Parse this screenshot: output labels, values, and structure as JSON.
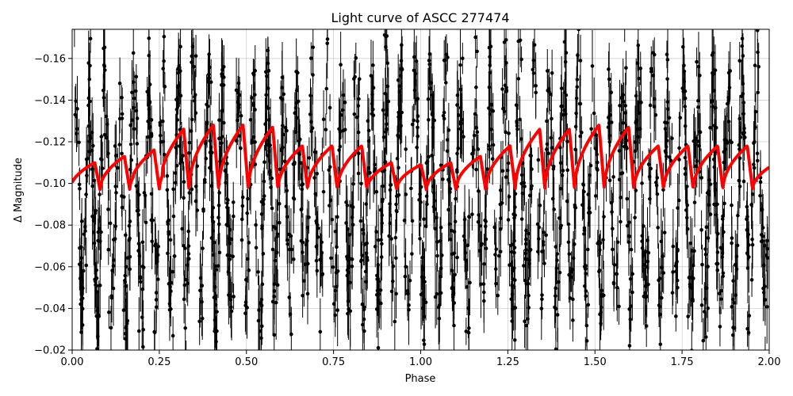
{
  "chart_data": {
    "type": "scatter",
    "title": "Light curve of ASCC 277474",
    "xlabel": "Phase",
    "ylabel": "Δ Magnitude",
    "xlim": [
      0.0,
      2.0
    ],
    "ylim": [
      -0.02,
      -0.174
    ],
    "y_inverted": true,
    "grid": true,
    "x_ticks": [
      0.0,
      0.25,
      0.5,
      0.75,
      1.0,
      1.25,
      1.5,
      1.75,
      2.0
    ],
    "x_tick_labels": [
      "0.00",
      "0.25",
      "0.50",
      "0.75",
      "1.00",
      "1.25",
      "1.50",
      "1.75",
      "2.00"
    ],
    "y_ticks": [
      -0.02,
      -0.04,
      -0.06,
      -0.08,
      -0.1,
      -0.12,
      -0.14,
      -0.16
    ],
    "y_tick_labels": [
      "−0.02",
      "−0.04",
      "−0.06",
      "−0.08",
      "−0.10",
      "−0.12",
      "−0.14",
      "−0.16"
    ],
    "series": [
      {
        "role": "observations",
        "color": "#000000",
        "marker": "circle",
        "error_bars": true,
        "n_cycles_per_phase": 23.5,
        "center": -0.095,
        "amplitude": 0.065,
        "typical_error": 0.012
      },
      {
        "role": "model",
        "color": "#ff0000",
        "line_width": 4,
        "cycles_per_phase": 11.75,
        "peak_points": [
          {
            "x": 0.04,
            "y": -0.11
          },
          {
            "x": 0.13,
            "y": -0.113
          },
          {
            "x": 0.22,
            "y": -0.116
          },
          {
            "x": 0.3,
            "y": -0.126
          },
          {
            "x": 0.38,
            "y": -0.128
          },
          {
            "x": 0.46,
            "y": -0.128
          },
          {
            "x": 0.55,
            "y": -0.127
          },
          {
            "x": 0.63,
            "y": -0.118
          },
          {
            "x": 0.72,
            "y": -0.118
          },
          {
            "x": 0.81,
            "y": -0.118
          },
          {
            "x": 0.89,
            "y": -0.11
          },
          {
            "x": 0.98,
            "y": -0.109
          },
          {
            "x": 1.06,
            "y": -0.11
          },
          {
            "x": 1.15,
            "y": -0.113
          },
          {
            "x": 1.23,
            "y": -0.118
          },
          {
            "x": 1.31,
            "y": -0.126
          },
          {
            "x": 1.4,
            "y": -0.126
          },
          {
            "x": 1.48,
            "y": -0.128
          },
          {
            "x": 1.57,
            "y": -0.127
          },
          {
            "x": 1.65,
            "y": -0.118
          },
          {
            "x": 1.74,
            "y": -0.118
          },
          {
            "x": 1.82,
            "y": -0.118
          },
          {
            "x": 1.91,
            "y": -0.118
          },
          {
            "x": 2.0,
            "y": -0.11
          }
        ],
        "trough_level": -0.097
      }
    ]
  }
}
